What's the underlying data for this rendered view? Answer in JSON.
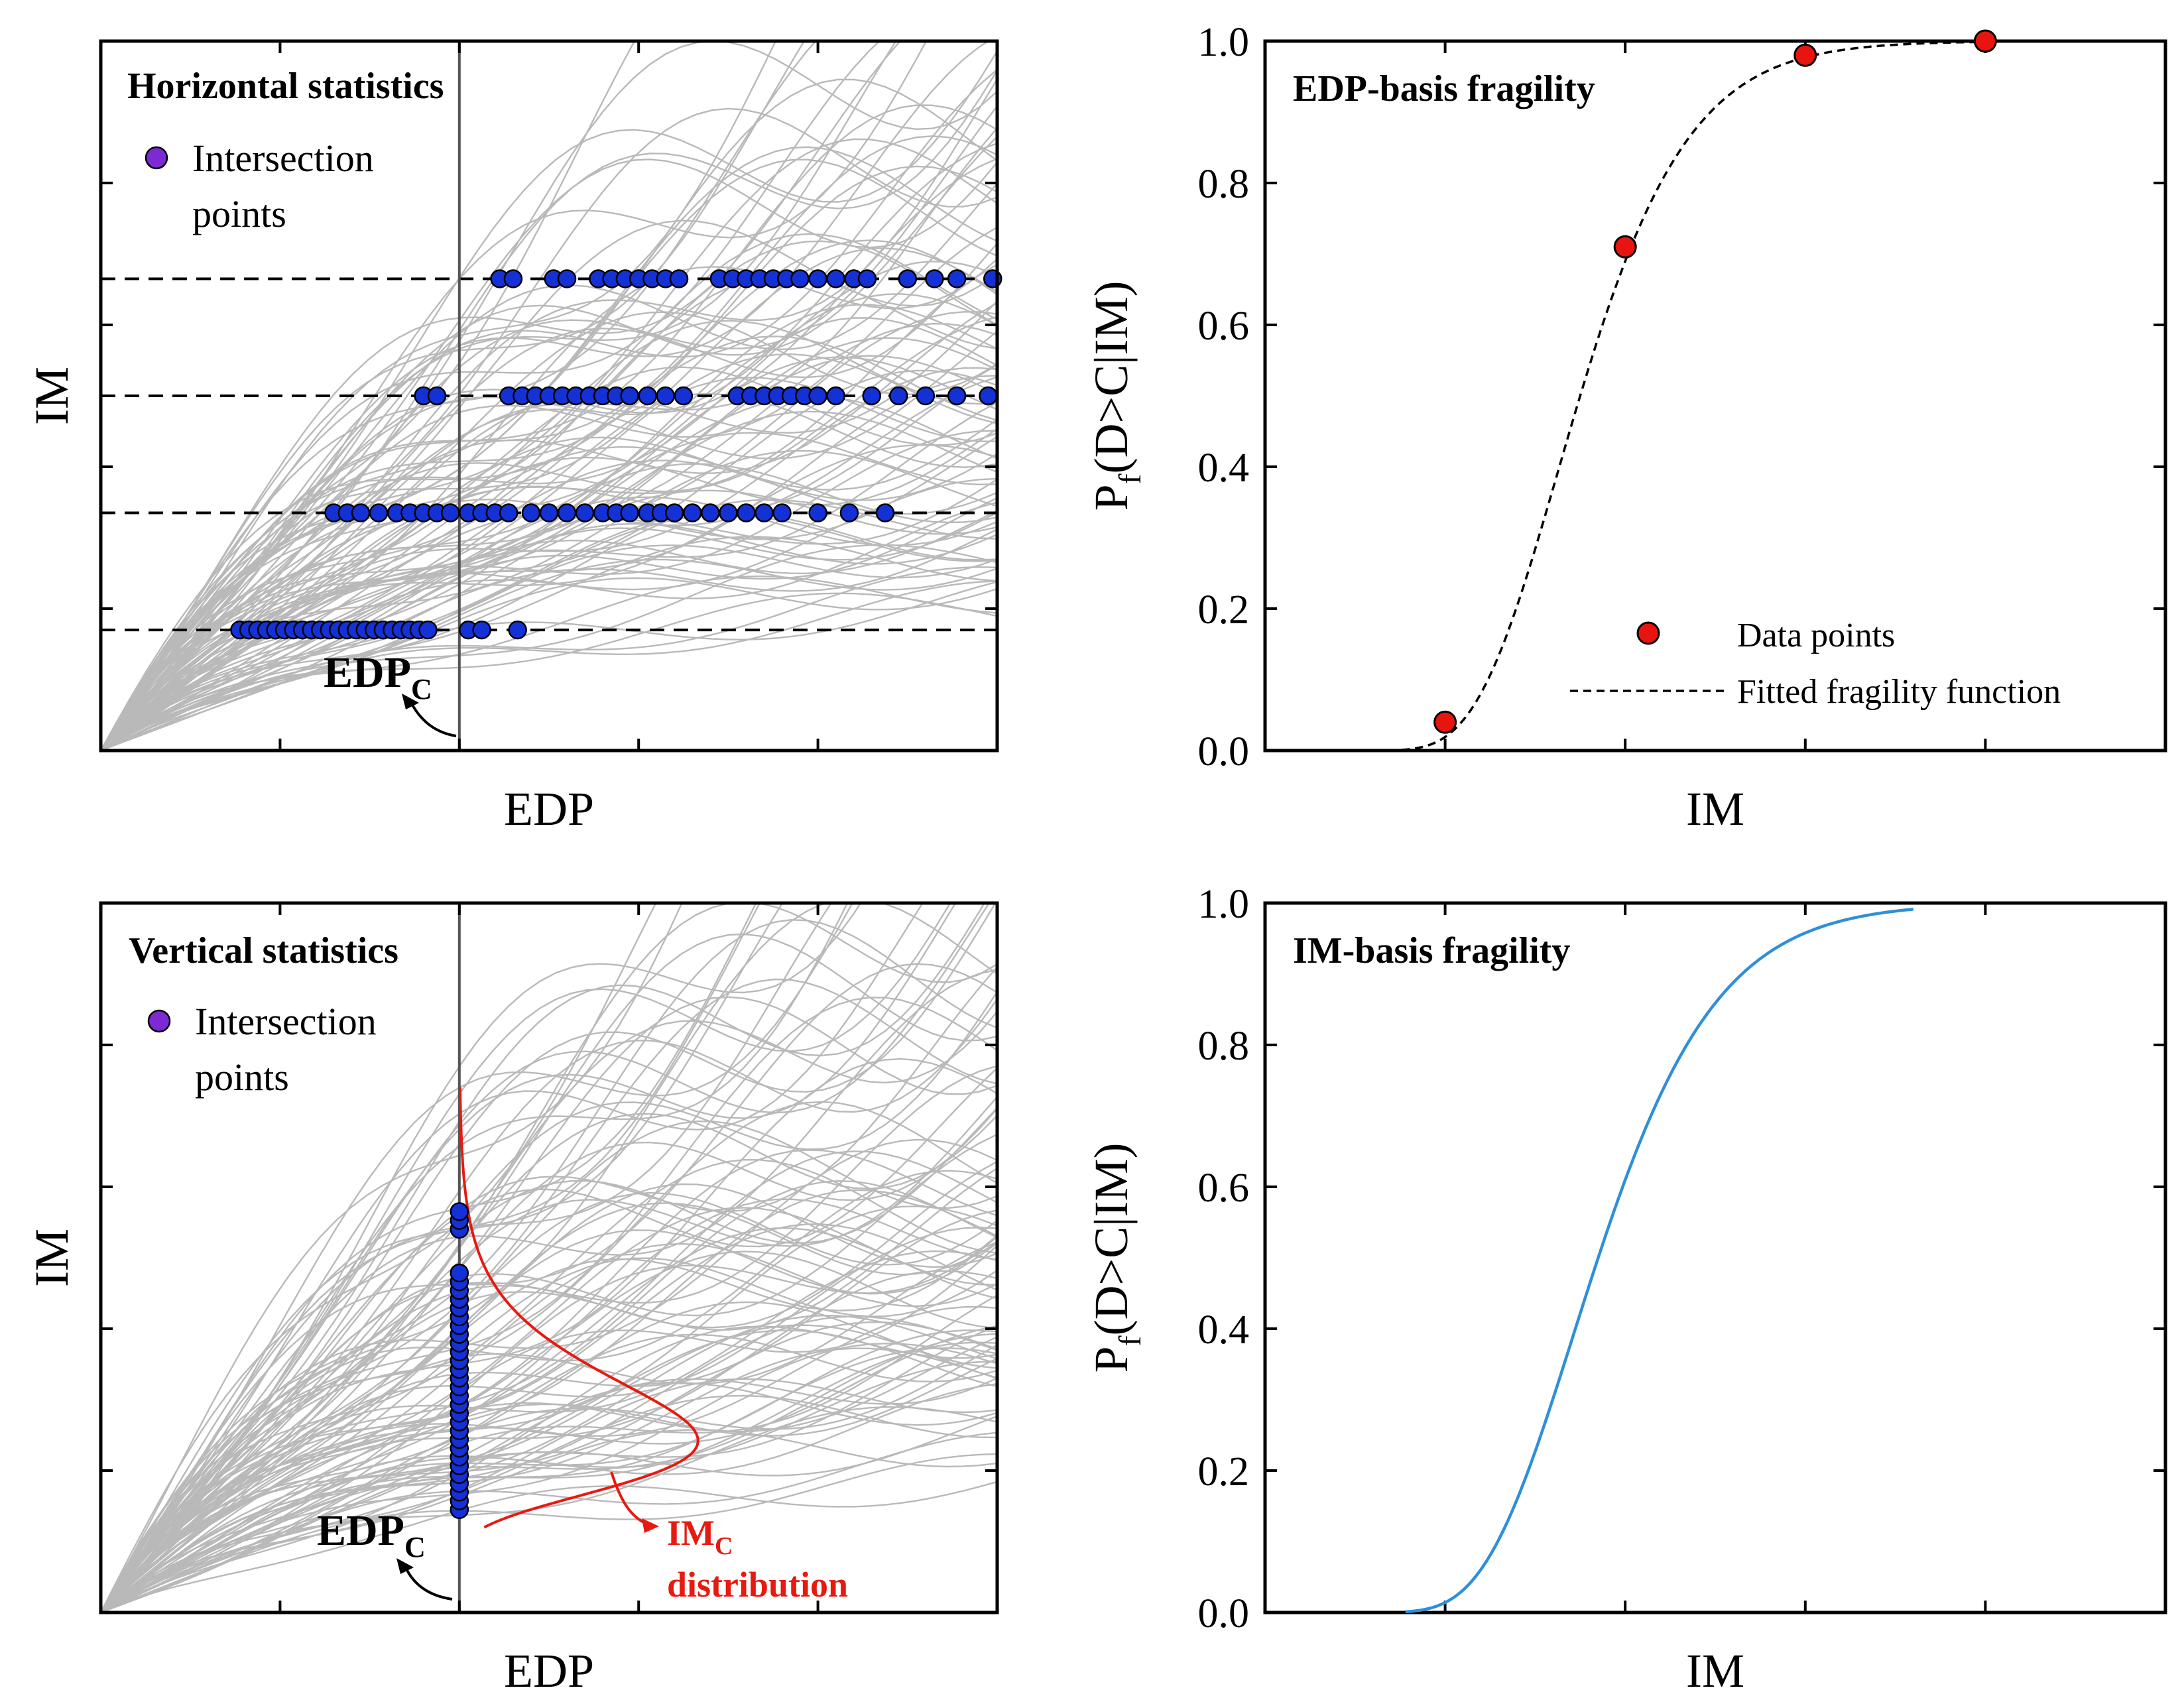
{
  "chart_data": [
    {
      "panel": "top-left",
      "type": "line",
      "title": "Horizontal statistics",
      "xlabel": "EDP",
      "ylabel": "IM",
      "legend": {
        "label": "Intersection points",
        "position": "top-left"
      },
      "annotation": {
        "text": "EDP",
        "subscript": "C"
      },
      "curve_count": 100,
      "im_levels_fraction_of_axis": [
        0.17,
        0.335,
        0.5,
        0.665
      ],
      "edp_c_fraction_of_axis": 0.4,
      "intersection_edp_fraction_lists": [
        [
          0.155,
          0.165,
          0.175,
          0.185,
          0.195,
          0.205,
          0.215,
          0.225,
          0.235,
          0.245,
          0.255,
          0.265,
          0.275,
          0.285,
          0.295,
          0.305,
          0.315,
          0.325,
          0.335,
          0.345,
          0.355,
          0.365,
          0.41,
          0.425,
          0.465
        ],
        [
          0.26,
          0.275,
          0.29,
          0.31,
          0.33,
          0.345,
          0.36,
          0.375,
          0.39,
          0.41,
          0.425,
          0.44,
          0.455,
          0.48,
          0.5,
          0.52,
          0.54,
          0.56,
          0.575,
          0.59,
          0.61,
          0.625,
          0.64,
          0.66,
          0.68,
          0.7,
          0.72,
          0.74,
          0.76,
          0.8,
          0.835,
          0.875
        ],
        [
          0.36,
          0.375,
          0.455,
          0.47,
          0.485,
          0.5,
          0.515,
          0.53,
          0.545,
          0.56,
          0.575,
          0.59,
          0.61,
          0.63,
          0.65,
          0.71,
          0.725,
          0.74,
          0.755,
          0.77,
          0.785,
          0.8,
          0.82,
          0.86,
          0.89,
          0.92,
          0.955,
          0.99
        ],
        [
          0.445,
          0.46,
          0.505,
          0.52,
          0.555,
          0.57,
          0.585,
          0.6,
          0.615,
          0.63,
          0.645,
          0.69,
          0.705,
          0.72,
          0.735,
          0.75,
          0.765,
          0.78,
          0.8,
          0.82,
          0.84,
          0.855,
          0.9,
          0.93,
          0.955,
          0.995
        ]
      ]
    },
    {
      "panel": "top-right",
      "type": "scatter",
      "title": "EDP-basis fragility",
      "xlabel": "IM",
      "ylabel": "Pf(D>C|IM)",
      "ylim": [
        0.0,
        1.0
      ],
      "yticks": [
        "0.0",
        "0.2",
        "0.4",
        "0.6",
        "0.8",
        "1.0"
      ],
      "series": [
        {
          "name": "Data points",
          "x_im_levels": [
            1,
            2,
            3,
            4
          ],
          "values": [
            0.04,
            0.71,
            0.98,
            1.0
          ]
        },
        {
          "name": "Fitted fragility function",
          "kind": "dashed-line",
          "lognormal_median_im_level": 1.75,
          "dispersion": 0.27
        }
      ],
      "legend_position": "bottom-right"
    },
    {
      "panel": "bottom-left",
      "type": "line",
      "title": "Vertical statistics",
      "xlabel": "EDP",
      "ylabel": "IM",
      "legend": {
        "label": "Intersection points",
        "position": "top-left"
      },
      "annotations": [
        {
          "text": "EDP",
          "subscript": "C"
        },
        {
          "text": "IM",
          "subscript": "C",
          "line2": "distribution",
          "color": "#e8190f"
        }
      ],
      "curve_count": 100,
      "edp_c_fraction_of_axis": 0.4,
      "intersection_im_fraction_range": [
        0.145,
        0.565
      ],
      "im_c_pdf_mode_fraction": 0.27
    },
    {
      "panel": "bottom-right",
      "type": "line",
      "title": "IM-basis fragility",
      "xlabel": "IM",
      "ylabel": "Pf(D>C|IM)",
      "ylim": [
        0.0,
        1.0
      ],
      "yticks": [
        "0.0",
        "0.2",
        "0.4",
        "0.6",
        "0.8",
        "1.0"
      ],
      "series": [
        {
          "name": "IM-basis fragility curve",
          "color": "#2f8fd8",
          "lognormal_median_im_level": 1.85,
          "dispersion": 0.28
        }
      ]
    }
  ],
  "colors": {
    "curves": "#b9b9b9",
    "intersection_points": "#1431d6",
    "legend_marker": "#7b2bd1",
    "data_points": "#e8140f",
    "im_basis_curve": "#2f8fd8",
    "im_c_distribution": "#e8190f"
  },
  "labels": {
    "tl_title": "Horizontal statistics",
    "tl_legend_line1": "Intersection",
    "tl_legend_line2": "points",
    "tl_xlabel": "EDP",
    "tl_ylabel": "IM",
    "tl_edpc": "EDP",
    "tl_edpc_sub": "C",
    "tr_title": "EDP-basis fragility",
    "tr_xlabel": "IM",
    "tr_ylabel_main": "P",
    "tr_ylabel_sub": "f",
    "tr_ylabel_rest": "(D>C|IM)",
    "tr_legend_points": "Data points",
    "tr_legend_fit": "Fitted fragility function",
    "bl_title": "Vertical statistics",
    "bl_legend_line1": "Intersection",
    "bl_legend_line2": "points",
    "bl_xlabel": "EDP",
    "bl_ylabel": "IM",
    "bl_edpc": "EDP",
    "bl_edpc_sub": "C",
    "bl_imc": "IM",
    "bl_imc_sub": "C",
    "bl_imc_line2": "distribution",
    "br_title": "IM-basis fragility",
    "br_xlabel": "IM",
    "br_ylabel_main": "P",
    "br_ylabel_sub": "f",
    "br_ylabel_rest": "(D>C|IM)"
  }
}
